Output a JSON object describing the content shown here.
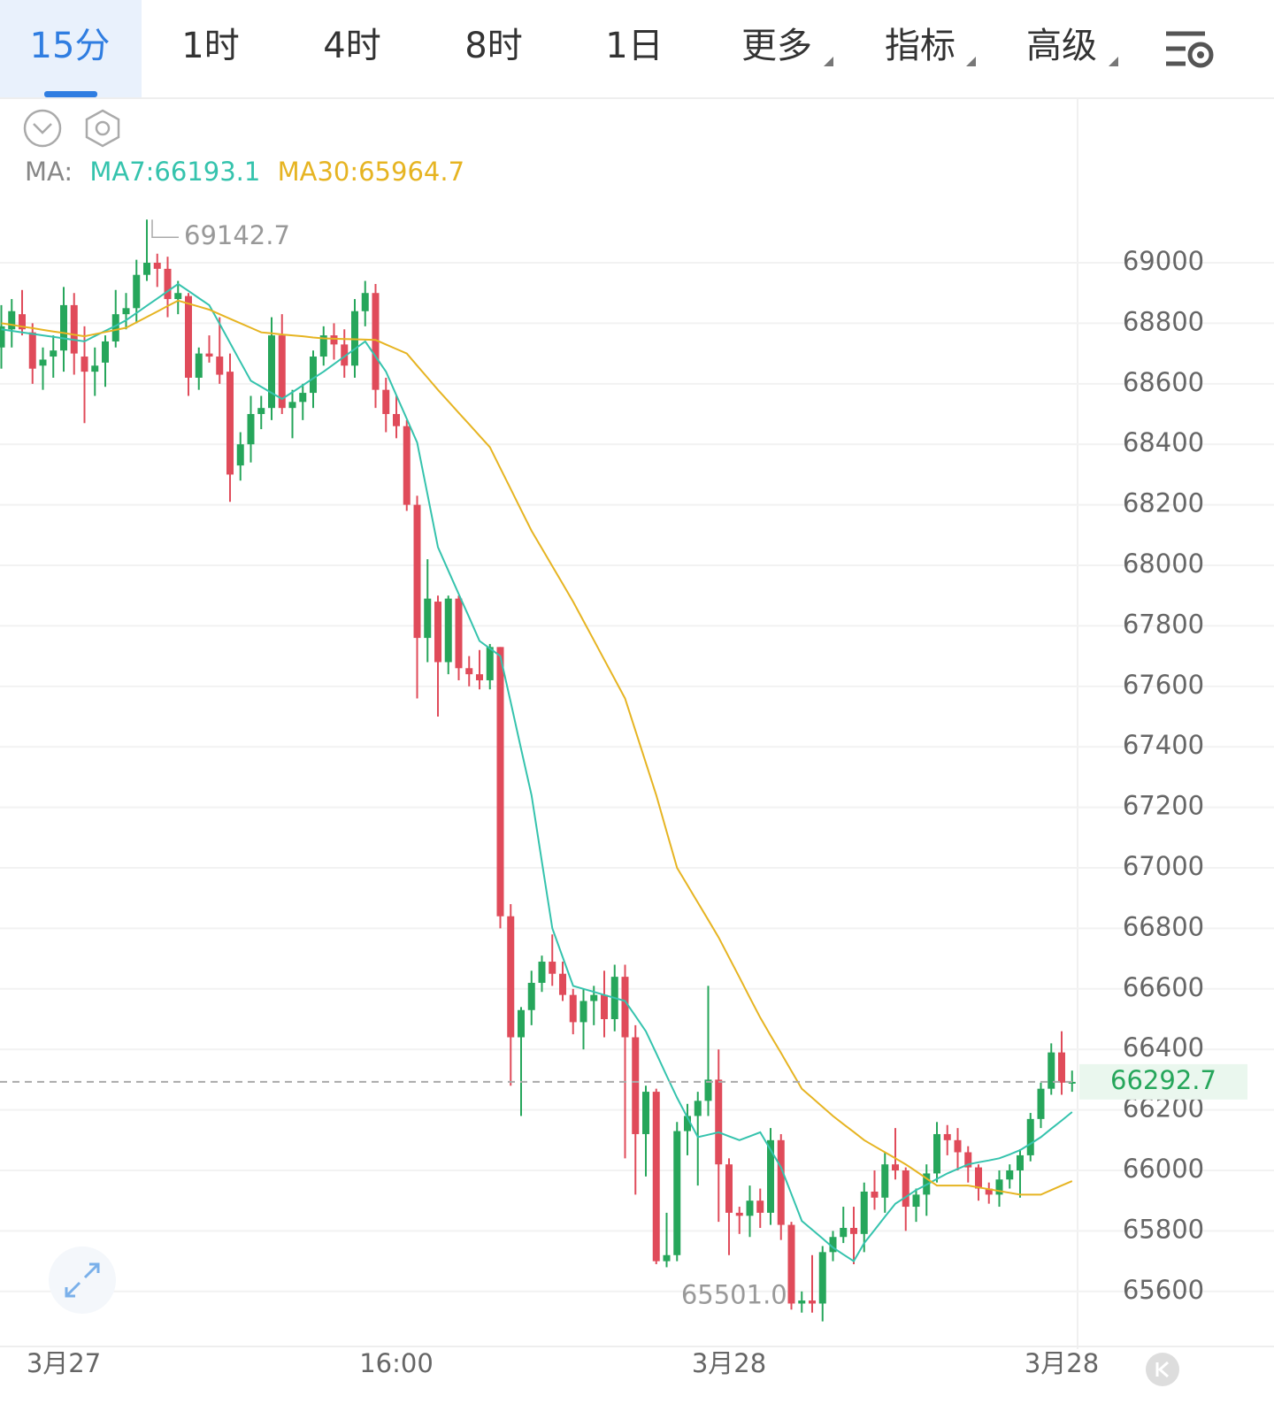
{
  "header": {
    "tabs": [
      "15分",
      "1时",
      "4时",
      "8时",
      "1日",
      "更多",
      "指标",
      "高级"
    ]
  },
  "chart_data": {
    "type": "candlestick",
    "up_color": "#26a65b",
    "down_color": "#e04b5a",
    "ma_prefix": "MA:",
    "categories": [
      null,
      null,
      null,
      null,
      null,
      null,
      "3月27",
      null,
      null,
      null,
      null,
      null,
      null,
      null,
      null,
      null,
      null,
      null,
      null,
      null,
      null,
      null,
      null,
      null,
      null,
      null,
      null,
      null,
      null,
      null,
      null,
      null,
      null,
      null,
      null,
      null,
      null,
      null,
      "16:00",
      null,
      null,
      null,
      null,
      null,
      null,
      null,
      null,
      null,
      null,
      null,
      null,
      null,
      null,
      null,
      null,
      null,
      null,
      null,
      null,
      null,
      null,
      null,
      null,
      null,
      null,
      null,
      null,
      null,
      null,
      null,
      "3月28",
      null,
      null,
      null,
      null,
      null,
      null,
      null,
      null,
      null,
      null,
      null,
      null,
      null,
      null,
      null,
      null,
      null,
      null,
      null,
      null,
      null,
      null,
      null,
      null,
      null,
      null,
      null,
      null,
      null,
      null,
      null,
      "3月28",
      null
    ],
    "open": [
      68720,
      68780,
      68830,
      68770,
      68660,
      68690,
      68710,
      68860,
      68690,
      68640,
      68670,
      68740,
      68830,
      68850,
      68960,
      69000,
      68980,
      68880,
      68890,
      68620,
      68700,
      68690,
      68640,
      68330,
      68400,
      68500,
      68520,
      68760,
      68520,
      68540,
      68570,
      68690,
      68760,
      68730,
      68660,
      68840,
      68900,
      68580,
      68500,
      68460,
      68200,
      67760,
      67880,
      67680,
      67890,
      67660,
      67640,
      67620,
      67730,
      66840,
      66440,
      66530,
      66620,
      66690,
      66650,
      66580,
      66490,
      66560,
      66580,
      66500,
      66640,
      66440,
      66120,
      66260,
      65700,
      65720,
      66130,
      66180,
      66230,
      66300,
      66020,
      65860,
      65850,
      65900,
      65860,
      66100,
      65820,
      65560,
      65570,
      65560,
      65730,
      65780,
      65810,
      65790,
      65930,
      65910,
      66020,
      66000,
      65880,
      65920,
      65990,
      66120,
      66100,
      66060,
      66010,
      65940,
      65920,
      65970,
      66000,
      66050,
      66170,
      66270,
      66390,
      66290
    ],
    "high": [
      68860,
      68880,
      68910,
      68800,
      68720,
      68760,
      68920,
      68900,
      68790,
      68720,
      68760,
      68910,
      68900,
      69010,
      69142.7,
      69030,
      69020,
      68940,
      68900,
      68720,
      68760,
      68820,
      68700,
      68440,
      68560,
      68560,
      68820,
      68830,
      68580,
      68600,
      68710,
      68790,
      68800,
      68780,
      68880,
      68940,
      68930,
      68620,
      68560,
      68480,
      68230,
      68020,
      67900,
      67900,
      67900,
      67700,
      67720,
      67740,
      67730,
      66880,
      66540,
      66660,
      66710,
      66780,
      66690,
      66600,
      66600,
      66610,
      66660,
      66680,
      66680,
      66480,
      66280,
      66270,
      65860,
      66160,
      66220,
      66260,
      66610,
      66400,
      66040,
      65880,
      65950,
      65940,
      66140,
      66120,
      65830,
      65600,
      65720,
      65750,
      65800,
      65880,
      65880,
      65960,
      66000,
      66060,
      66140,
      66010,
      65940,
      66020,
      66160,
      66150,
      66140,
      66080,
      66020,
      65960,
      66000,
      66020,
      66070,
      66190,
      66290,
      66420,
      66460,
      66330
    ],
    "low": [
      68650,
      68720,
      68760,
      68600,
      68580,
      68620,
      68640,
      68630,
      68470,
      68560,
      68590,
      68720,
      68780,
      68800,
      68940,
      68920,
      68820,
      68830,
      68560,
      68580,
      68670,
      68600,
      68210,
      68280,
      68340,
      68450,
      68480,
      68500,
      68420,
      68480,
      68520,
      68660,
      68680,
      68620,
      68620,
      68790,
      68520,
      68440,
      68420,
      68180,
      67560,
      67680,
      67500,
      67640,
      67620,
      67600,
      67590,
      67590,
      66800,
      66280,
      66180,
      66480,
      66590,
      66610,
      66560,
      66450,
      66400,
      66480,
      66440,
      66460,
      66040,
      65920,
      65980,
      65690,
      65680,
      65700,
      66050,
      65950,
      66180,
      65830,
      65720,
      65790,
      65780,
      65810,
      65820,
      65770,
      65540,
      65530,
      65530,
      65501,
      65700,
      65760,
      65690,
      65730,
      65870,
      65860,
      65970,
      65800,
      65830,
      65850,
      65960,
      66050,
      66000,
      65960,
      65900,
      65890,
      65880,
      65940,
      65910,
      66030,
      66140,
      66250,
      66250,
      66260
    ],
    "close": [
      68790,
      68840,
      68780,
      68650,
      68680,
      68710,
      68860,
      68700,
      68640,
      68660,
      68740,
      68830,
      68850,
      68960,
      69000,
      68980,
      68880,
      68900,
      68620,
      68700,
      68690,
      68630,
      68300,
      68400,
      68500,
      68520,
      68760,
      68520,
      68540,
      68570,
      68690,
      68760,
      68730,
      68660,
      68840,
      68900,
      68580,
      68500,
      68460,
      68200,
      67760,
      67890,
      67680,
      67890,
      67660,
      67640,
      67620,
      67730,
      66840,
      66440,
      66530,
      66620,
      66690,
      66650,
      66580,
      66490,
      66560,
      66580,
      66500,
      66640,
      66440,
      66120,
      66260,
      65700,
      65720,
      66130,
      66180,
      66230,
      66300,
      66020,
      65860,
      65850,
      65900,
      65860,
      66100,
      65820,
      65560,
      65570,
      65560,
      65730,
      65780,
      65810,
      65790,
      65930,
      65910,
      66020,
      66000,
      65880,
      65920,
      65990,
      66120,
      66100,
      66060,
      66010,
      65940,
      65920,
      65970,
      66000,
      66050,
      66170,
      66270,
      66390,
      66290,
      66292.7
    ],
    "series": [
      {
        "name": "MA7",
        "legend_label": "MA7:66193.1",
        "color": "#35c3ad",
        "values": [
          68780,
          68775,
          68770,
          68765,
          68760,
          68755,
          68750,
          68745,
          68740,
          68758,
          68775,
          68792,
          68810,
          68834,
          68858,
          68882,
          68906,
          68930,
          68907,
          68883,
          68860,
          68798,
          68735,
          68672,
          68610,
          68590,
          68570,
          68550,
          68572,
          68595,
          68618,
          68640,
          68665,
          68690,
          68715,
          68740,
          68690,
          68640,
          68562,
          68484,
          68406,
          68233,
          68060,
          67982,
          67905,
          67828,
          67750,
          67725,
          67700,
          67547,
          67393,
          67240,
          67020,
          66800,
          66705,
          66610,
          66600,
          66590,
          66580,
          66570,
          66560,
          66510,
          66460,
          66387,
          66313,
          66240,
          66175,
          66110,
          66118,
          66126,
          66113,
          66100,
          66113,
          66126,
          66068,
          66010,
          65922,
          65833,
          65804,
          65775,
          65745,
          65722,
          65700,
          65760,
          65803,
          65847,
          65890,
          65912,
          65935,
          65953,
          65972,
          65990,
          66005,
          66020,
          66027,
          66033,
          66040,
          66053,
          66067,
          66088,
          66110,
          66138,
          66165,
          66193.1
        ]
      },
      {
        "name": "MA30",
        "legend_label": "MA30:65964.7",
        "color": "#e6b422",
        "values": [
          68800,
          68795,
          68789,
          68784,
          68778,
          68773,
          68768,
          68762,
          68757,
          68764,
          68771,
          68778,
          68785,
          68803,
          68821,
          68839,
          68857,
          68875,
          68865,
          68855,
          68845,
          68830,
          68815,
          68800,
          68785,
          68770,
          68767,
          68763,
          68760,
          68757,
          68753,
          68750,
          68749,
          68748,
          68747,
          68746,
          68745,
          68730,
          68715,
          68700,
          68660,
          68620,
          68580,
          68542,
          68504,
          68466,
          68428,
          68390,
          68321,
          68252,
          68183,
          68114,
          68056,
          67997,
          67939,
          67880,
          67816,
          67752,
          67688,
          67624,
          67560,
          67453,
          67347,
          67240,
          67120,
          67000,
          66943,
          66885,
          66828,
          66770,
          66704,
          66638,
          66571,
          66505,
          66446,
          66388,
          66329,
          66270,
          66240,
          66210,
          66180,
          66153,
          66127,
          66100,
          66080,
          66060,
          66040,
          66020,
          65997,
          65973,
          65950,
          65950,
          65950,
          65950,
          65944,
          65938,
          65932,
          65926,
          65920,
          65920,
          65920,
          65935,
          65950,
          65964.7
        ]
      }
    ],
    "high_annotation": 69142.7,
    "low_annotation": {
      "value": 65501,
      "label": "65501.0"
    },
    "last_price": 66292.7,
    "ylim": [
      65424,
      69541
    ],
    "yticks": [
      69000,
      68800,
      68600,
      68400,
      68200,
      68000,
      67800,
      67600,
      67400,
      67200,
      67000,
      66800,
      66600,
      66400,
      66200,
      66000,
      65800,
      65600
    ],
    "grid": true
  }
}
